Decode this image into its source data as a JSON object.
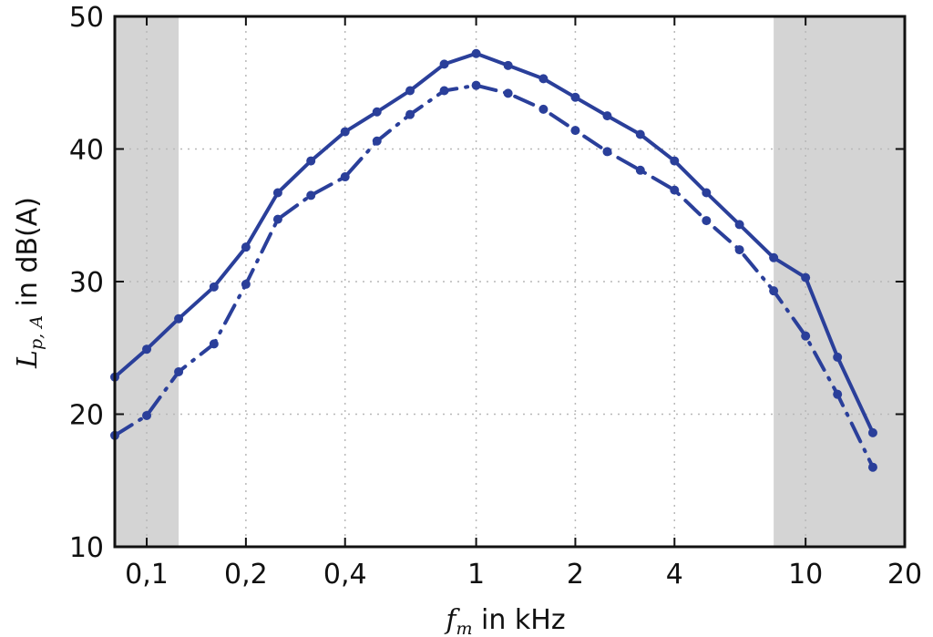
{
  "chart_data": {
    "type": "line",
    "title": "",
    "xlabel": {
      "symbol": "f",
      "subscript": "m",
      "suffix": " in kHz"
    },
    "ylabel": {
      "symbol": "L",
      "subscript": "p, A",
      "suffix": " in dB(A)"
    },
    "x_scale": "log",
    "xlim": [
      0.08,
      20
    ],
    "ylim": [
      10,
      50
    ],
    "grid": true,
    "x_ticks": [
      {
        "value": 0.1,
        "label": "0,1"
      },
      {
        "value": 0.2,
        "label": "0,2"
      },
      {
        "value": 0.4,
        "label": "0,4"
      },
      {
        "value": 1,
        "label": "1"
      },
      {
        "value": 2,
        "label": "2"
      },
      {
        "value": 4,
        "label": "4"
      },
      {
        "value": 10,
        "label": "10"
      },
      {
        "value": 20,
        "label": "20"
      }
    ],
    "y_ticks": [
      {
        "value": 10,
        "label": "10"
      },
      {
        "value": 20,
        "label": "20"
      },
      {
        "value": 30,
        "label": "30"
      },
      {
        "value": 40,
        "label": "40"
      },
      {
        "value": 50,
        "label": "50"
      }
    ],
    "shaded_ranges": [
      {
        "from": 0.08,
        "to": 0.125
      },
      {
        "from": 8,
        "to": 20
      }
    ],
    "x": [
      0.08,
      0.1,
      0.125,
      0.16,
      0.2,
      0.25,
      0.315,
      0.4,
      0.5,
      0.63,
      0.8,
      1,
      1.25,
      1.6,
      2,
      2.5,
      3.15,
      4,
      5,
      6.3,
      8,
      10,
      12.5,
      16
    ],
    "series": [
      {
        "name": "solid",
        "style": "solid",
        "color": "#2a3f9a",
        "values": [
          22.8,
          24.9,
          27.2,
          29.6,
          32.6,
          36.7,
          39.1,
          41.3,
          42.8,
          44.4,
          46.4,
          47.2,
          46.3,
          45.3,
          43.9,
          42.5,
          41.1,
          39.1,
          36.7,
          34.3,
          31.8,
          30.3,
          24.3,
          18.6
        ]
      },
      {
        "name": "dash-dot",
        "style": "dashdot",
        "color": "#2a3f9a",
        "values": [
          18.4,
          19.9,
          23.2,
          25.3,
          29.8,
          34.7,
          36.5,
          37.9,
          40.6,
          42.6,
          44.4,
          44.8,
          44.2,
          43.0,
          41.4,
          39.8,
          38.4,
          36.9,
          34.6,
          32.4,
          29.3,
          25.9,
          21.5,
          16.0
        ]
      }
    ]
  }
}
